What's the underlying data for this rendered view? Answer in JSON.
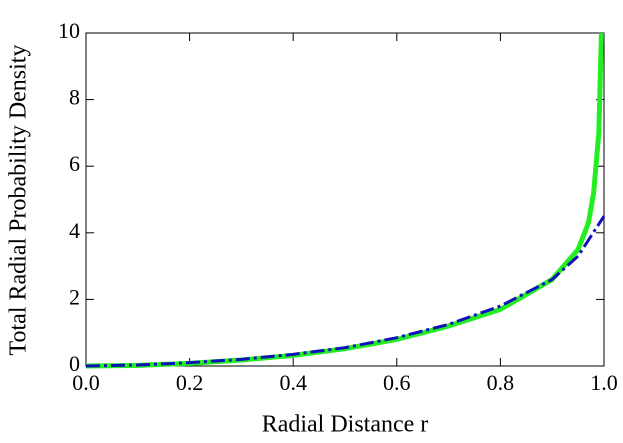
{
  "chart_data": {
    "type": "line",
    "xlabel": "Radial Distance r",
    "ylabel": "Total Radial Probability Density",
    "xlim": [
      0,
      1
    ],
    "ylim": [
      0,
      10
    ],
    "xticks": [
      {
        "value": 0,
        "label": "0.0"
      },
      0.2,
      0.4,
      0.6,
      0.8,
      {
        "value": 1,
        "label": "1.0"
      }
    ],
    "yticks": [
      0,
      2,
      4,
      6,
      8,
      10
    ],
    "series": [
      {
        "color": "#22ee22",
        "style": "solid",
        "x": [
          0,
          0.1,
          0.2,
          0.3,
          0.4,
          0.5,
          0.6,
          0.7,
          0.8,
          0.9,
          0.95,
          0.97,
          0.98,
          0.99,
          0.995
        ],
        "values": [
          0,
          0.02,
          0.08,
          0.18,
          0.32,
          0.52,
          0.8,
          1.2,
          1.7,
          2.6,
          3.5,
          4.3,
          5.2,
          7,
          10
        ]
      },
      {
        "color": "#1111bb",
        "style": "dashdot",
        "x": [
          0,
          0.1,
          0.2,
          0.3,
          0.4,
          0.5,
          0.6,
          0.7,
          0.8,
          0.9,
          0.95,
          1
        ],
        "values": [
          0,
          0.03,
          0.1,
          0.2,
          0.35,
          0.55,
          0.85,
          1.25,
          1.8,
          2.6,
          3.3,
          4.5
        ]
      }
    ]
  }
}
